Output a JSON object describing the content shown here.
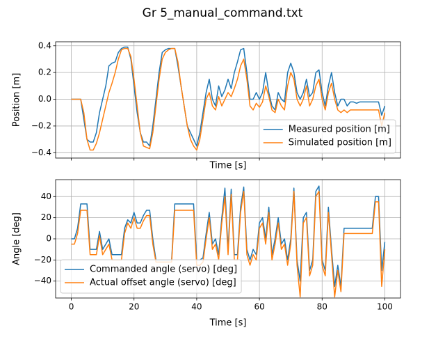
{
  "title": "Gr 5_manual_command.txt",
  "chart_data": [
    {
      "type": "line",
      "xlabel": "Time [s]",
      "ylabel": "Position [m]",
      "xlim": [
        -5,
        105
      ],
      "ylim": [
        -0.44,
        0.43
      ],
      "xticks": [
        0,
        20,
        40,
        60,
        80,
        100
      ],
      "show_xtick_labels": false,
      "yticks": [
        {
          "value": -0.4,
          "label": "−0.4"
        },
        {
          "value": -0.2,
          "label": "−0.2"
        },
        {
          "value": 0,
          "label": "0.0"
        },
        0.2,
        0.4
      ],
      "grid": true,
      "legend": "lower right",
      "x": [
        0,
        1,
        2,
        3,
        4,
        5,
        6,
        7,
        8,
        9,
        10,
        11,
        12,
        13,
        14,
        15,
        16,
        17,
        18,
        19,
        20,
        21,
        22,
        23,
        24,
        25,
        26,
        27,
        28,
        29,
        30,
        31,
        32,
        33,
        34,
        35,
        36,
        37,
        38,
        39,
        40,
        41,
        42,
        43,
        44,
        45,
        46,
        47,
        48,
        49,
        50,
        51,
        52,
        53,
        54,
        55,
        56,
        57,
        58,
        59,
        60,
        61,
        62,
        63,
        64,
        65,
        66,
        67,
        68,
        69,
        70,
        71,
        72,
        73,
        74,
        75,
        76,
        77,
        78,
        79,
        80,
        81,
        82,
        83,
        84,
        85,
        86,
        87,
        88,
        89,
        90,
        91,
        92,
        93,
        94,
        95,
        96,
        97,
        98,
        99,
        100
      ],
      "series": [
        {
          "name": "Measured position [m]",
          "color": "#1f77b4",
          "values": [
            0,
            0,
            0,
            0,
            -0.15,
            -0.3,
            -0.32,
            -0.32,
            -0.25,
            -0.1,
            0,
            0.1,
            0.25,
            0.27,
            0.28,
            0.35,
            0.38,
            0.39,
            0.39,
            0.3,
            0.1,
            -0.1,
            -0.25,
            -0.32,
            -0.32,
            -0.35,
            -0.2,
            0,
            0.2,
            0.35,
            0.37,
            0.38,
            0.38,
            0.38,
            0.25,
            0.1,
            -0.05,
            -0.2,
            -0.25,
            -0.3,
            -0.35,
            -0.25,
            -0.1,
            0.05,
            0.15,
            0,
            -0.05,
            0.1,
            0.02,
            0.07,
            0.15,
            0.08,
            0.2,
            0.28,
            0.37,
            0.38,
            0.2,
            0,
            0,
            0.05,
            0,
            0.05,
            0.2,
            0.05,
            -0.05,
            -0.08,
            0.05,
            0,
            -0.02,
            0.2,
            0.27,
            0.2,
            0.05,
            0,
            0.05,
            0.15,
            0.02,
            0.05,
            0.2,
            0.22,
            0.05,
            -0.05,
            0.1,
            0.2,
            0.05,
            -0.05,
            0,
            0,
            -0.05,
            -0.02,
            -0.02,
            -0.03,
            -0.02,
            -0.02,
            -0.02,
            -0.02,
            -0.02,
            -0.02,
            -0.02,
            -0.12,
            -0.05
          ]
        },
        {
          "name": "Simulated position [m]",
          "color": "#ff7f0e",
          "values": [
            0,
            0,
            0,
            0,
            -0.1,
            -0.3,
            -0.38,
            -0.38,
            -0.33,
            -0.25,
            -0.15,
            -0.05,
            0.05,
            0.12,
            0.2,
            0.3,
            0.37,
            0.38,
            0.38,
            0.32,
            0.15,
            -0.05,
            -0.25,
            -0.35,
            -0.36,
            -0.37,
            -0.25,
            -0.05,
            0.15,
            0.3,
            0.35,
            0.37,
            0.38,
            0.38,
            0.28,
            0.1,
            -0.05,
            -0.2,
            -0.3,
            -0.35,
            -0.38,
            -0.3,
            -0.15,
            0,
            0.05,
            -0.05,
            -0.08,
            0.02,
            -0.05,
            0,
            0.05,
            0.02,
            0.08,
            0.15,
            0.25,
            0.3,
            0.15,
            -0.05,
            -0.08,
            -0.03,
            -0.06,
            -0.02,
            0.1,
            0.02,
            -0.08,
            -0.1,
            0,
            -0.05,
            -0.08,
            0.1,
            0.2,
            0.15,
            0,
            -0.05,
            0,
            0.1,
            -0.05,
            0,
            0.1,
            0.15,
            0,
            -0.08,
            0.05,
            0.12,
            0,
            -0.08,
            -0.1,
            -0.08,
            -0.1,
            -0.08,
            -0.08,
            -0.08,
            -0.08,
            -0.08,
            -0.08,
            -0.08,
            -0.08,
            -0.08,
            -0.08,
            -0.2,
            -0.1
          ]
        }
      ]
    },
    {
      "type": "line",
      "xlabel": "Time [s]",
      "ylabel": "Angle [deg]",
      "xlim": [
        -5,
        105
      ],
      "ylim": [
        -56,
        56
      ],
      "xticks": [
        0,
        20,
        40,
        60,
        80,
        100
      ],
      "show_xtick_labels": true,
      "yticks": [
        {
          "value": -40,
          "label": "−40"
        },
        {
          "value": -20,
          "label": "−20"
        },
        0,
        20,
        40
      ],
      "grid": true,
      "legend": "lower left",
      "x": [
        0,
        1,
        2,
        3,
        4,
        5,
        6,
        7,
        8,
        9,
        10,
        11,
        12,
        13,
        14,
        15,
        16,
        17,
        18,
        19,
        20,
        21,
        22,
        23,
        24,
        25,
        26,
        27,
        28,
        29,
        30,
        31,
        32,
        33,
        34,
        35,
        36,
        37,
        38,
        39,
        40,
        41,
        42,
        43,
        44,
        45,
        46,
        47,
        48,
        49,
        50,
        51,
        52,
        53,
        54,
        55,
        56,
        57,
        58,
        59,
        60,
        61,
        62,
        63,
        64,
        65,
        66,
        67,
        68,
        69,
        70,
        71,
        72,
        73,
        74,
        75,
        76,
        77,
        78,
        79,
        80,
        81,
        82,
        83,
        84,
        85,
        86,
        87,
        88,
        89,
        90,
        91,
        92,
        93,
        94,
        95,
        96,
        97,
        98,
        99,
        100
      ],
      "series": [
        {
          "name": "Commanded angle (servo) [deg]",
          "color": "#1f77b4",
          "values": [
            0,
            0,
            10,
            33,
            33,
            33,
            -10,
            -10,
            -10,
            7,
            -10,
            -5,
            0,
            -15,
            -15,
            -15,
            -15,
            10,
            18,
            15,
            25,
            15,
            15,
            22,
            27,
            27,
            0,
            -20,
            -20,
            -20,
            -20,
            -20,
            -20,
            33,
            33,
            33,
            33,
            33,
            33,
            33,
            -20,
            -20,
            -18,
            5,
            25,
            -5,
            0,
            -15,
            20,
            48,
            -10,
            47,
            -15,
            -15,
            30,
            49,
            -10,
            -20,
            -10,
            -15,
            15,
            20,
            0,
            30,
            -15,
            0,
            20,
            -5,
            0,
            -20,
            0,
            48,
            -20,
            -40,
            20,
            25,
            -30,
            -20,
            45,
            50,
            -20,
            -30,
            30,
            -10,
            -45,
            -25,
            -45,
            10,
            10,
            10,
            10,
            10,
            10,
            10,
            10,
            10,
            10,
            40,
            40,
            -30,
            -3
          ]
        },
        {
          "name": "Actual offset angle (servo) [deg]",
          "color": "#ff7f0e",
          "values": [
            -5,
            -5,
            5,
            27,
            27,
            27,
            -15,
            -15,
            -15,
            3,
            -15,
            -10,
            -5,
            -20,
            -20,
            -20,
            -20,
            5,
            15,
            10,
            20,
            10,
            10,
            17,
            22,
            22,
            -5,
            -22,
            -22,
            -22,
            -22,
            -22,
            -22,
            27,
            27,
            27,
            27,
            27,
            27,
            27,
            -25,
            -25,
            -22,
            0,
            20,
            -10,
            -5,
            -20,
            15,
            40,
            -15,
            42,
            -20,
            -20,
            25,
            45,
            -15,
            -25,
            -15,
            -20,
            10,
            15,
            -5,
            25,
            -20,
            -5,
            15,
            -10,
            -5,
            -25,
            -5,
            45,
            -25,
            -55,
            15,
            20,
            -35,
            -25,
            40,
            45,
            -25,
            -35,
            25,
            -15,
            -55,
            -30,
            -50,
            5,
            5,
            5,
            5,
            5,
            5,
            5,
            5,
            5,
            5,
            35,
            35,
            -45,
            -10
          ]
        }
      ]
    }
  ]
}
